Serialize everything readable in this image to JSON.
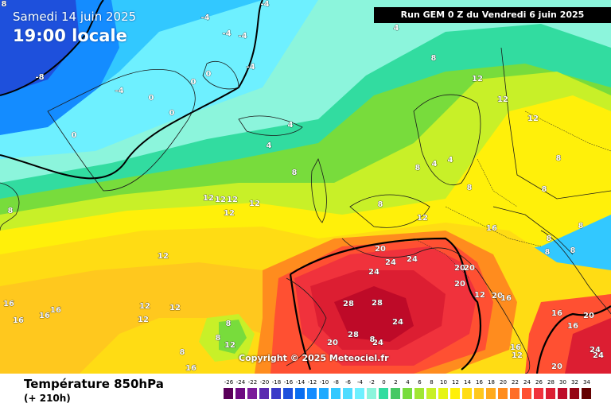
{
  "header": {
    "date": "Samedi 14 juin 2025",
    "time": "19:00 locale",
    "run": "Run GEM 0 Z du Vendredi 6 juin 2025"
  },
  "copyright": "Copyright © 2025 Meteociel.fr",
  "footer": {
    "title": "Température 850hPa",
    "subtitle": "(+ 210h)"
  },
  "legend": {
    "values": [
      "-26",
      "-24",
      "-22",
      "-20",
      "-18",
      "-16",
      "-14",
      "-12",
      "-10",
      "-8",
      "-6",
      "-4",
      "-2",
      "0",
      "2",
      "4",
      "6",
      "8",
      "10",
      "12",
      "14",
      "16",
      "18",
      "20",
      "22",
      "24",
      "26",
      "28",
      "30",
      "32",
      "34"
    ],
    "colors": [
      "#5a005a",
      "#6e0a82",
      "#7a1a9a",
      "#5a2ab0",
      "#3a3ac8",
      "#1e50dc",
      "#0a6ef0",
      "#148cff",
      "#1eaaff",
      "#32c8ff",
      "#50dcff",
      "#6ef0ff",
      "#8cf5dc",
      "#32dca0",
      "#46c864",
      "#78dc3c",
      "#a0e632",
      "#c8f028",
      "#e6f514",
      "#fff00a",
      "#ffdc14",
      "#ffc81e",
      "#ffaa1e",
      "#ff8c1e",
      "#ff6e28",
      "#ff5032",
      "#f0323c",
      "#dc1e32",
      "#be0a28",
      "#960514",
      "#640000"
    ]
  },
  "map_labels": [
    {
      "text": "8"
    },
    {
      "text": "-8"
    },
    {
      "text": "-4"
    },
    {
      "text": "-4"
    },
    {
      "text": "-4"
    },
    {
      "text": "-4"
    },
    {
      "text": "-4"
    },
    {
      "text": "-4"
    },
    {
      "text": "4"
    },
    {
      "text": "0"
    },
    {
      "text": "0"
    },
    {
      "text": "0"
    },
    {
      "text": "0"
    },
    {
      "text": "0"
    },
    {
      "text": "4"
    },
    {
      "text": "4"
    },
    {
      "text": "8"
    },
    {
      "text": "8"
    },
    {
      "text": "12"
    },
    {
      "text": "12"
    },
    {
      "text": "12"
    },
    {
      "text": "4"
    },
    {
      "text": "8"
    },
    {
      "text": "12"
    },
    {
      "text": "12"
    },
    {
      "text": "12"
    },
    {
      "text": "12"
    },
    {
      "text": "8"
    },
    {
      "text": "8"
    },
    {
      "text": "4"
    },
    {
      "text": "8"
    },
    {
      "text": "8"
    },
    {
      "text": "8"
    },
    {
      "text": "12"
    },
    {
      "text": "8"
    },
    {
      "text": "8"
    },
    {
      "text": "12"
    },
    {
      "text": "16"
    },
    {
      "text": "8"
    },
    {
      "text": "8"
    },
    {
      "text": "12"
    },
    {
      "text": "12"
    },
    {
      "text": "20"
    },
    {
      "text": "24"
    },
    {
      "text": "24"
    },
    {
      "text": "24"
    },
    {
      "text": "20"
    },
    {
      "text": "20"
    },
    {
      "text": "28"
    },
    {
      "text": "28"
    },
    {
      "text": "24"
    },
    {
      "text": "28"
    },
    {
      "text": "24"
    },
    {
      "text": "20"
    },
    {
      "text": "20"
    },
    {
      "text": "16"
    },
    {
      "text": "16"
    },
    {
      "text": "16"
    },
    {
      "text": "16"
    },
    {
      "text": "16"
    },
    {
      "text": "16"
    },
    {
      "text": "12"
    },
    {
      "text": "12"
    },
    {
      "text": "12"
    },
    {
      "text": "8"
    },
    {
      "text": "8"
    },
    {
      "text": "8"
    },
    {
      "text": "12"
    },
    {
      "text": "16"
    },
    {
      "text": "16"
    },
    {
      "text": "20"
    },
    {
      "text": "16"
    },
    {
      "text": "20"
    },
    {
      "text": "24"
    },
    {
      "text": "24"
    },
    {
      "text": "8"
    },
    {
      "text": "12"
    },
    {
      "text": "20"
    }
  ]
}
